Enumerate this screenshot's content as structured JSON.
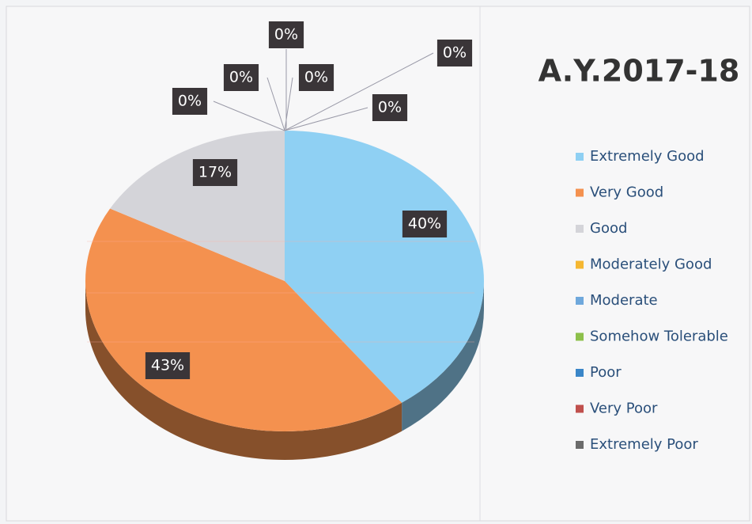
{
  "chart_data": {
    "type": "pie",
    "title": "A.Y.2017-18",
    "categories": [
      "Extremely Good",
      "Very Good",
      "Good",
      "Moderately Good",
      "Moderate",
      "Somehow Tolerable",
      "Poor",
      "Very Poor",
      "Extremely Poor"
    ],
    "values": [
      40,
      43,
      17,
      0,
      0,
      0,
      0,
      0,
      0
    ],
    "value_labels": [
      "40%",
      "43%",
      "17%",
      "0%",
      "0%",
      "0%",
      "0%",
      "0%",
      "0%"
    ],
    "colors": [
      "#8fd0f3",
      "#f4914f",
      "#d4d4d9",
      "#f5b731",
      "#6fa8dc",
      "#8dc04b",
      "#3a86c8",
      "#c0504d",
      "#6b6b6b"
    ]
  }
}
